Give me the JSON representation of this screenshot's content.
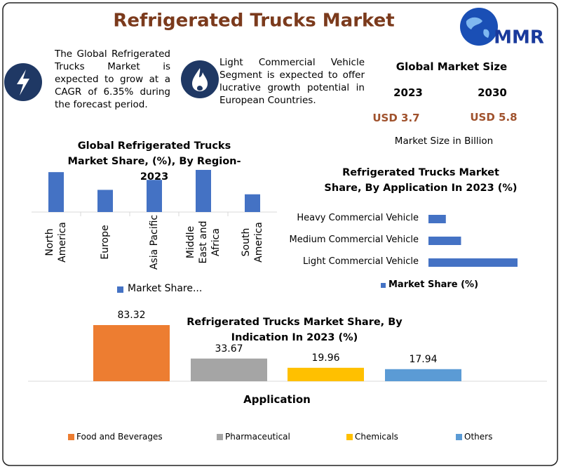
{
  "header": {
    "title": "Refrigerated Trucks Market",
    "logo": "MMR"
  },
  "notes": [
    "The Global Refrigerated Trucks Market is expected to grow at a CAGR of 6.35% during the forecast period.",
    "Light Commercial Vehicle Segment is expected to offer lucrative growth potential in European Countries."
  ],
  "market_size": {
    "title": "Global Market Size",
    "years": [
      "2023",
      "2030"
    ],
    "values": [
      "USD 3.7",
      "USD 5.8"
    ],
    "unit": "Market Size in Billion"
  },
  "chart_data": [
    {
      "type": "bar",
      "title": "Global Refrigerated Trucks Market Share, (%), By Region- 2023",
      "categories": [
        "North America",
        "Europe",
        "Asia Pacific",
        "Middle East and Africa",
        "South America"
      ],
      "series": [
        {
          "name": "Market Share...",
          "color": "#4472c4",
          "values": [
            36,
            20,
            29,
            38,
            16
          ]
        }
      ]
    },
    {
      "type": "barh",
      "title": "Refrigerated Trucks  Market  Share, By Application In 2023 (%)",
      "categories": [
        "Heavy Commercial Vehicle",
        "Medium Commercial Vehicle",
        "Light Commercial Vehicle"
      ],
      "series": [
        {
          "name": "Market Share (%)",
          "color": "#4472c4",
          "values": [
            8,
            15,
            41
          ]
        }
      ]
    },
    {
      "type": "bar",
      "title": "Refrigerated Trucks Market  Share, By Indication In 2023 (%)",
      "xlabel": "Application",
      "categories": [
        "Food and Beverages",
        "Pharmaceutical",
        "Chemicals",
        "Others"
      ],
      "colors": [
        "#ed7d31",
        "#a5a5a5",
        "#ffc000",
        "#5b9bd5"
      ],
      "values": [
        83.32,
        33.67,
        19.96,
        17.94
      ]
    }
  ]
}
